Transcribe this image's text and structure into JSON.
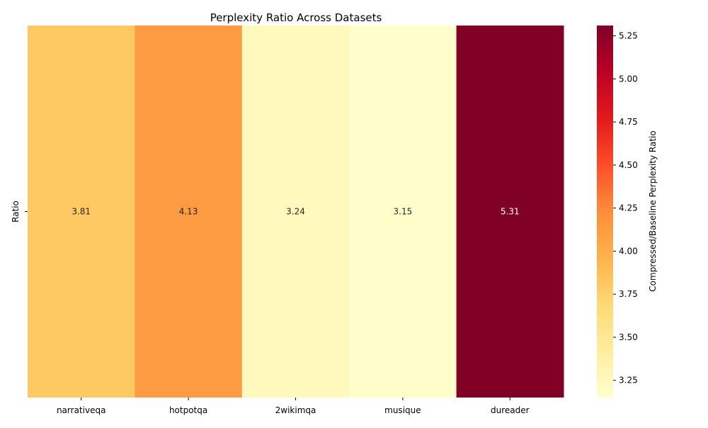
{
  "chart_data": {
    "type": "heatmap",
    "title": "Perplexity Ratio Across Datasets",
    "xlabel": "",
    "ylabel": "",
    "rows": [
      "Ratio"
    ],
    "columns": [
      "narrativeqa",
      "hotpotqa",
      "2wikimqa",
      "musique",
      "dureader"
    ],
    "values": [
      [
        3.81,
        4.13,
        3.24,
        3.15,
        5.31
      ]
    ],
    "value_labels": [
      "3.81",
      "4.13",
      "3.24",
      "3.15",
      "5.31"
    ],
    "colormap": "YlOrRd",
    "colorbar": {
      "label": "Compressed/Baseline Perplexity Ratio",
      "range": [
        3.15,
        5.31
      ],
      "ticks": [
        "3.25",
        "3.50",
        "3.75",
        "4.00",
        "4.25",
        "4.50",
        "4.75",
        "5.00",
        "5.25"
      ]
    },
    "grid": false
  }
}
